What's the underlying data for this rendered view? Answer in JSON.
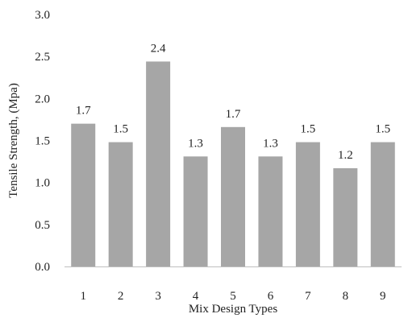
{
  "chart_data": {
    "type": "bar",
    "categories": [
      "1",
      "2",
      "3",
      "4",
      "5",
      "6",
      "7",
      "8",
      "9"
    ],
    "values": [
      1.7,
      1.48,
      2.44,
      1.31,
      1.66,
      1.31,
      1.48,
      1.17,
      1.48
    ],
    "data_labels": [
      "1.7",
      "1.5",
      "2.4",
      "1.3",
      "1.7",
      "1.3",
      "1.5",
      "1.2",
      "1.5"
    ],
    "y_ticks": [
      "0.0",
      "0.5",
      "1.0",
      "1.5",
      "2.0",
      "2.5",
      "3.0"
    ],
    "xlabel": "Mix Design Types",
    "ylabel": "Tensile Strength, (Mpa)",
    "ylim": [
      0,
      3
    ],
    "grid": false,
    "legend": "none",
    "bar_color": "#a6a6a6",
    "axis_color": "#bfbfbf"
  }
}
